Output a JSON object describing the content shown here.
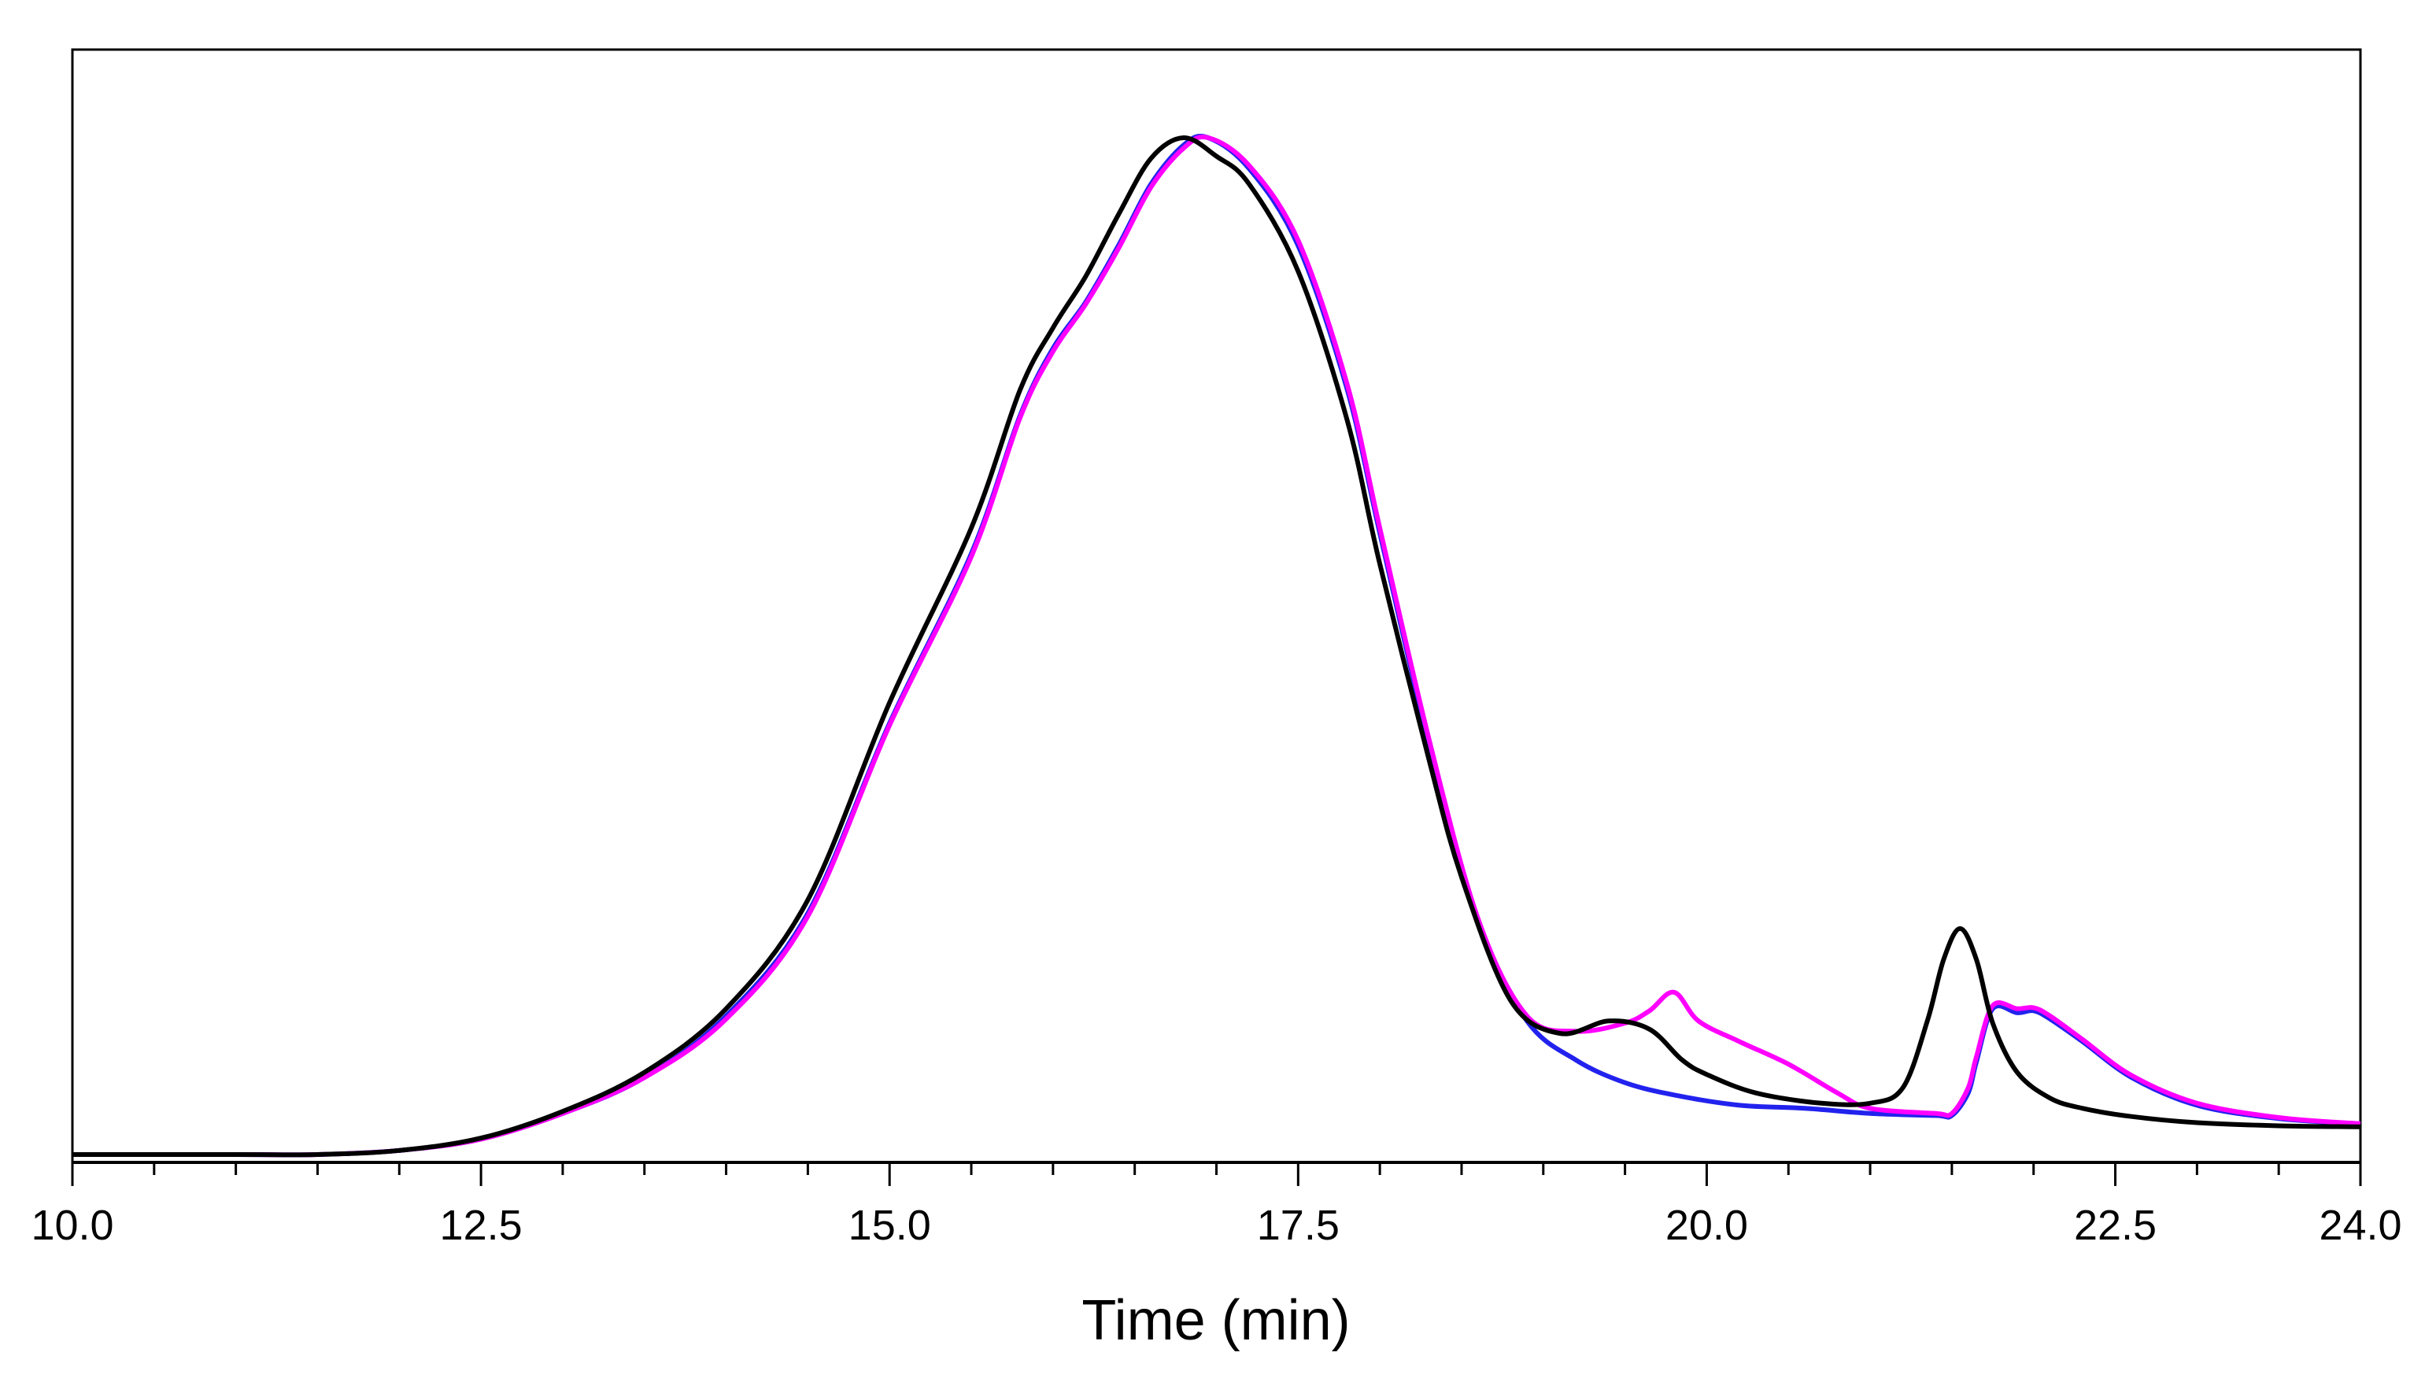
{
  "chart_data": {
    "type": "line",
    "title": "",
    "xlabel": "Time (min)",
    "ylabel": "",
    "xlim": [
      10.0,
      24.0
    ],
    "ylim": [
      0,
      1.0
    ],
    "y_ticks_shown": false,
    "grid": false,
    "x_tick_labels": [
      "10.0",
      "12.5",
      "15.0",
      "17.5",
      "20.0",
      "22.5",
      "24.0"
    ],
    "x_major_ticks": [
      10.0,
      12.5,
      15.0,
      17.5,
      20.0,
      22.5,
      24.0
    ],
    "x_minor_step": 0.5,
    "colors": {
      "black_trace": "#000000",
      "blue_trace": "#2222ee",
      "magenta_trace": "#ff00ff"
    },
    "series": [
      {
        "name": "blue trace",
        "color": "#2222ee",
        "x": [
          10.0,
          11.0,
          11.5,
          12.0,
          12.5,
          13.0,
          13.5,
          14.0,
          14.5,
          15.0,
          15.5,
          15.8,
          16.0,
          16.2,
          16.4,
          16.6,
          16.8,
          16.95,
          17.2,
          17.5,
          17.8,
          18.0,
          18.3,
          18.6,
          18.9,
          19.2,
          19.5,
          19.8,
          20.2,
          20.6,
          21.0,
          21.4,
          21.5,
          21.6,
          21.65,
          21.75,
          21.9,
          22.0,
          22.1,
          22.3,
          22.6,
          23.0,
          23.5,
          24.0
        ],
        "y": [
          0.0,
          0.0,
          0.0,
          0.004,
          0.015,
          0.04,
          0.075,
          0.135,
          0.235,
          0.42,
          0.585,
          0.72,
          0.785,
          0.83,
          0.885,
          0.945,
          0.983,
          0.99,
          0.96,
          0.885,
          0.745,
          0.605,
          0.4,
          0.225,
          0.13,
          0.092,
          0.07,
          0.058,
          0.048,
          0.045,
          0.04,
          0.038,
          0.038,
          0.06,
          0.09,
          0.142,
          0.138,
          0.14,
          0.132,
          0.11,
          0.075,
          0.048,
          0.035,
          0.03
        ]
      },
      {
        "name": "magenta trace",
        "color": "#ff00ff",
        "x": [
          10.0,
          11.0,
          11.5,
          12.0,
          12.5,
          13.0,
          13.5,
          14.0,
          14.5,
          15.0,
          15.5,
          15.8,
          16.0,
          16.2,
          16.4,
          16.6,
          16.8,
          16.95,
          17.2,
          17.5,
          17.8,
          18.0,
          18.3,
          18.6,
          18.9,
          19.2,
          19.5,
          19.65,
          19.8,
          19.95,
          20.2,
          20.5,
          20.8,
          21.0,
          21.4,
          21.5,
          21.6,
          21.65,
          21.75,
          21.9,
          22.0,
          22.1,
          22.3,
          22.6,
          23.0,
          23.5,
          24.0
        ],
        "y": [
          0.0,
          0.0,
          0.0,
          0.004,
          0.015,
          0.04,
          0.075,
          0.132,
          0.232,
          0.418,
          0.582,
          0.718,
          0.782,
          0.828,
          0.882,
          0.942,
          0.98,
          0.99,
          0.963,
          0.89,
          0.75,
          0.61,
          0.405,
          0.23,
          0.135,
          0.12,
          0.128,
          0.14,
          0.158,
          0.13,
          0.11,
          0.088,
          0.06,
          0.045,
          0.04,
          0.04,
          0.065,
          0.095,
          0.145,
          0.142,
          0.143,
          0.135,
          0.112,
          0.077,
          0.05,
          0.036,
          0.03
        ]
      },
      {
        "name": "black trace",
        "color": "#000000",
        "x": [
          10.0,
          11.0,
          11.5,
          12.0,
          12.5,
          13.0,
          13.5,
          14.0,
          14.5,
          15.0,
          15.5,
          15.8,
          16.0,
          16.2,
          16.4,
          16.6,
          16.8,
          17.0,
          17.2,
          17.5,
          17.8,
          18.0,
          18.3,
          18.5,
          18.8,
          19.1,
          19.4,
          19.65,
          19.85,
          20.0,
          20.3,
          20.7,
          21.0,
          21.2,
          21.35,
          21.45,
          21.55,
          21.65,
          21.75,
          21.9,
          22.1,
          22.3,
          22.6,
          23.0,
          23.5,
          24.0
        ],
        "y": [
          0.0,
          0.0,
          0.0,
          0.004,
          0.016,
          0.042,
          0.08,
          0.142,
          0.248,
          0.44,
          0.61,
          0.745,
          0.805,
          0.855,
          0.915,
          0.97,
          0.99,
          0.972,
          0.945,
          0.86,
          0.715,
          0.575,
          0.385,
          0.27,
          0.15,
          0.118,
          0.13,
          0.122,
          0.092,
          0.078,
          0.06,
          0.05,
          0.05,
          0.065,
          0.13,
          0.19,
          0.22,
          0.19,
          0.128,
          0.08,
          0.055,
          0.045,
          0.037,
          0.031,
          0.028,
          0.027
        ]
      }
    ]
  }
}
